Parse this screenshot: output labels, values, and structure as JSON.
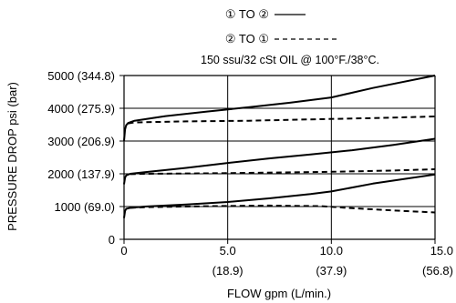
{
  "chart_data": {
    "type": "line",
    "subtitle": "150 ssu/32 cSt OIL @ 100°F./38°C.",
    "xlabel": "FLOW gpm (L/min.)",
    "ylabel": "PRESSURE DROP psi (bar)",
    "xlim": [
      0,
      15
    ],
    "ylim": [
      0,
      5000
    ],
    "grid": true,
    "x_ticks": [
      {
        "value": 0,
        "label": "0",
        "sub": ""
      },
      {
        "value": 5,
        "label": "5.0",
        "sub": "(18.9)"
      },
      {
        "value": 10,
        "label": "10.0",
        "sub": "(37.9)"
      },
      {
        "value": 15,
        "label": "15.0",
        "sub": "(56.8)"
      }
    ],
    "y_ticks": [
      {
        "value": 0,
        "label": "0"
      },
      {
        "value": 1000,
        "label": "1000 (69.0)"
      },
      {
        "value": 2000,
        "label": "2000 (137.9)"
      },
      {
        "value": 3000,
        "label": "3000 (206.9)"
      },
      {
        "value": 4000,
        "label": "4000 (275.9)"
      },
      {
        "value": 5000,
        "label": "5000 (344.8)"
      }
    ],
    "legend": {
      "placement": "top-right",
      "entries": [
        {
          "label": "① TO ②",
          "style": "solid"
        },
        {
          "label": "② TO ①",
          "style": "dashed"
        }
      ]
    },
    "series": [
      {
        "style": "solid",
        "values": [
          [
            0,
            3000
          ],
          [
            0.05,
            3350
          ],
          [
            0.1,
            3480
          ],
          [
            0.2,
            3550
          ],
          [
            0.5,
            3620
          ],
          [
            2,
            3760
          ],
          [
            4,
            3900
          ],
          [
            6,
            4030
          ],
          [
            8,
            4170
          ],
          [
            10,
            4330
          ],
          [
            12,
            4620
          ],
          [
            15,
            5000
          ]
        ]
      },
      {
        "style": "dashed",
        "values": [
          [
            0.2,
            3540
          ],
          [
            0.5,
            3570
          ],
          [
            3,
            3600
          ],
          [
            6,
            3620
          ],
          [
            9,
            3660
          ],
          [
            12,
            3700
          ],
          [
            15,
            3750
          ]
        ]
      },
      {
        "style": "solid",
        "values": [
          [
            0,
            1680
          ],
          [
            0.05,
            1880
          ],
          [
            0.1,
            1950
          ],
          [
            0.3,
            2000
          ],
          [
            1,
            2050
          ],
          [
            3,
            2180
          ],
          [
            5,
            2330
          ],
          [
            7,
            2470
          ],
          [
            9,
            2590
          ],
          [
            11,
            2720
          ],
          [
            13,
            2880
          ],
          [
            15,
            3070
          ]
        ]
      },
      {
        "style": "dashed",
        "values": [
          [
            0.3,
            1990
          ],
          [
            1,
            2000
          ],
          [
            5,
            2020
          ],
          [
            10,
            2060
          ],
          [
            13,
            2100
          ],
          [
            15,
            2140
          ]
        ]
      },
      {
        "style": "solid",
        "values": [
          [
            0,
            650
          ],
          [
            0.05,
            860
          ],
          [
            0.1,
            930
          ],
          [
            0.3,
            960
          ],
          [
            1,
            1000
          ],
          [
            3,
            1060
          ],
          [
            5,
            1140
          ],
          [
            7,
            1250
          ],
          [
            9,
            1380
          ],
          [
            10,
            1460
          ],
          [
            12,
            1700
          ],
          [
            15,
            1980
          ]
        ]
      },
      {
        "style": "dashed",
        "values": [
          [
            0.3,
            960
          ],
          [
            1,
            980
          ],
          [
            4,
            1010
          ],
          [
            7,
            1030
          ],
          [
            9.5,
            1010
          ],
          [
            11,
            950
          ],
          [
            13,
            880
          ],
          [
            15,
            820
          ]
        ]
      }
    ]
  }
}
